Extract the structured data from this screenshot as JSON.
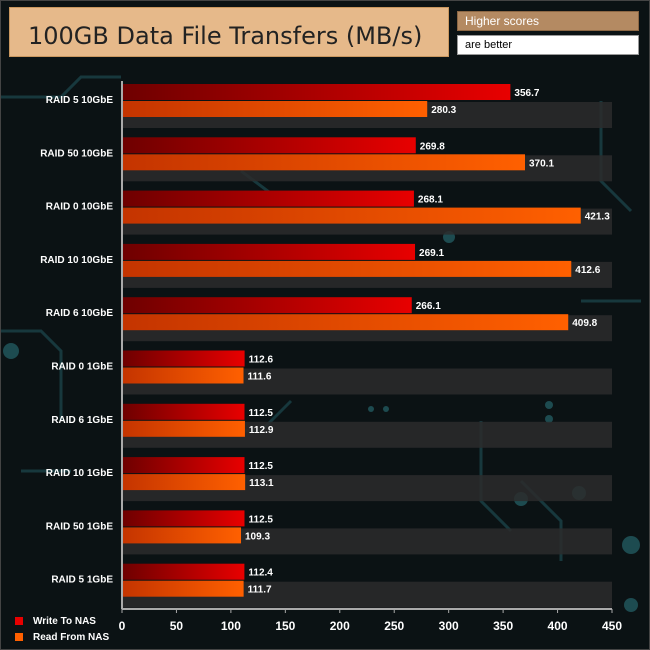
{
  "title": "100GB Data File Transfers (MB/s)",
  "note_line1": "Higher scores",
  "note_line2": "are better",
  "colors": {
    "write": "#e80000",
    "read": "#ff6000",
    "band": "#2c2c2c",
    "axis": "#aaaaaa"
  },
  "chart_data": {
    "type": "bar",
    "orientation": "horizontal",
    "title": "100GB Data File Transfers (MB/s)",
    "xlabel": "",
    "ylabel": "",
    "xlim": [
      0,
      450
    ],
    "x_ticks": [
      0,
      50,
      100,
      150,
      200,
      250,
      300,
      350,
      400,
      450
    ],
    "grid": false,
    "legend_position": "bottom-left",
    "categories": [
      "RAID 5 10GbE",
      "RAID 50 10GbE",
      "RAID 0 10GbE",
      "RAID 10 10GbE",
      "RAID 6 10GbE",
      "RAID 0 1GbE",
      "RAID 6 1GbE",
      "RAID 10 1GbE",
      "RAID 50 1GbE",
      "RAID 5 1GbE"
    ],
    "series": [
      {
        "name": "Write To NAS",
        "values": [
          356.7,
          269.8,
          268.1,
          269.1,
          266.1,
          112.6,
          112.5,
          112.5,
          112.5,
          112.4
        ]
      },
      {
        "name": "Read From NAS",
        "values": [
          280.3,
          370.1,
          421.3,
          412.6,
          409.8,
          111.6,
          112.9,
          113.1,
          109.3,
          111.7
        ]
      }
    ]
  }
}
